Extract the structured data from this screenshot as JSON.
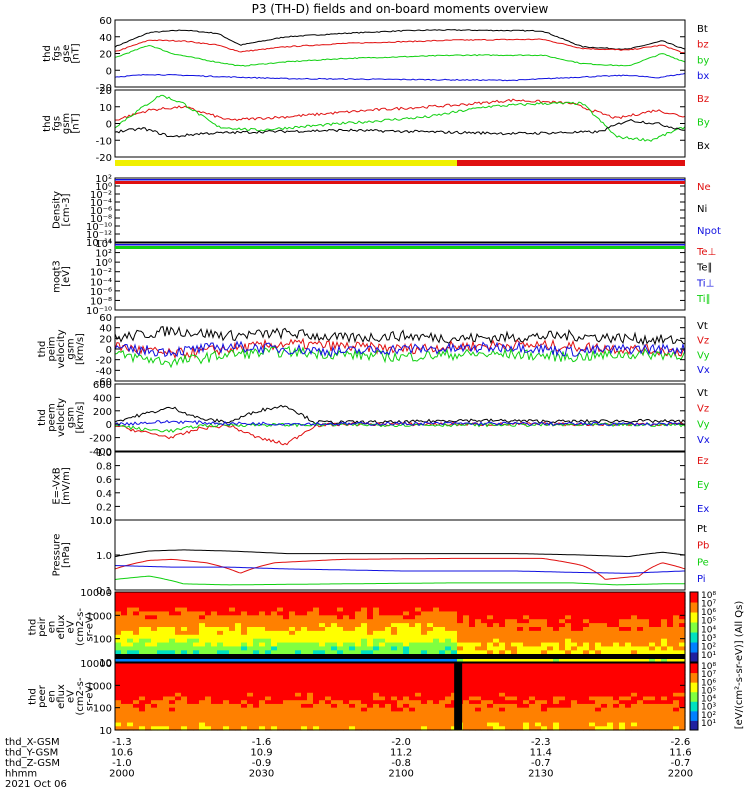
{
  "title": "P3 (TH-D) fields and on-board moments overview",
  "colors": {
    "black": "#000000",
    "red": "#e01010",
    "green": "#10d010",
    "blue": "#1010e0",
    "yellow": "#f0f000"
  },
  "chart_data": [
    {
      "id": "fgs_gse",
      "type": "line",
      "ylabel": [
        "thd",
        "fgs",
        "gse",
        "[nT]"
      ],
      "ylim": [
        -20,
        60
      ],
      "yticks": [
        "60",
        "40",
        "20",
        "0",
        "-20"
      ],
      "series": [
        {
          "name": "Bt",
          "color": "#000000",
          "x": [
            0,
            6,
            12,
            18,
            22,
            30,
            40,
            50,
            56,
            60,
            75,
            82,
            90,
            96,
            100
          ],
          "y": [
            28,
            45,
            48,
            44,
            30,
            40,
            44,
            47,
            48,
            48,
            47,
            28,
            25,
            35,
            25
          ]
        },
        {
          "name": "bz",
          "color": "#e01010",
          "x": [
            0,
            6,
            12,
            18,
            22,
            30,
            40,
            50,
            60,
            75,
            82,
            90,
            96,
            100
          ],
          "y": [
            22,
            36,
            35,
            30,
            22,
            28,
            32,
            34,
            36,
            37,
            26,
            24,
            30,
            20
          ]
        },
        {
          "name": "by",
          "color": "#10d010",
          "x": [
            0,
            6,
            10,
            16,
            22,
            30,
            40,
            50,
            60,
            75,
            82,
            90,
            96,
            100
          ],
          "y": [
            15,
            30,
            20,
            12,
            5,
            10,
            14,
            16,
            18,
            18,
            8,
            5,
            20,
            10
          ]
        },
        {
          "name": "bx",
          "color": "#1010e0",
          "x": [
            0,
            6,
            12,
            20,
            30,
            50,
            70,
            82,
            90,
            95,
            100
          ],
          "y": [
            -8,
            -5,
            -6,
            -8,
            -10,
            -11,
            -12,
            -8,
            -6,
            -9,
            -4
          ]
        }
      ]
    },
    {
      "id": "fgs_gsm",
      "type": "line",
      "ylabel": [
        "thd",
        "fgs",
        "gsm",
        "[nT]"
      ],
      "ylim": [
        -20,
        20
      ],
      "yticks": [
        "20",
        "10",
        "0",
        "-10",
        "-20"
      ],
      "series": [
        {
          "name": "Bz",
          "color": "#e01010",
          "x": [
            0,
            6,
            12,
            20,
            30,
            45,
            60,
            70,
            80,
            88,
            95,
            100
          ],
          "y": [
            2,
            8,
            10,
            2,
            4,
            8,
            11,
            14,
            12,
            3,
            8,
            4
          ]
        },
        {
          "name": "By",
          "color": "#10d010",
          "x": [
            0,
            5,
            8,
            12,
            18,
            25,
            40,
            55,
            65,
            75,
            82,
            88,
            94,
            100
          ],
          "y": [
            -2,
            10,
            17,
            12,
            -2,
            -4,
            0,
            4,
            10,
            12,
            12,
            -8,
            -10,
            -2
          ]
        },
        {
          "name": "Bx",
          "color": "#000000",
          "x": [
            0,
            5,
            10,
            15,
            25,
            40,
            55,
            70,
            85,
            90,
            95,
            100
          ],
          "y": [
            -5,
            -3,
            -8,
            -6,
            -5,
            -4,
            -5,
            -6,
            -5,
            2,
            0,
            -4
          ]
        }
      ]
    },
    {
      "id": "density",
      "type": "line",
      "ylabel": [
        "Density",
        "[cm-3]"
      ],
      "yticks": [
        "10²",
        "10⁰",
        "10⁻²",
        "10⁻⁴",
        "10⁻⁶",
        "10⁻⁸",
        "10⁻¹⁰",
        "10⁻¹²",
        "10⁻¹⁴"
      ],
      "legend": [
        {
          "name": "Ne",
          "color": "#e01010"
        },
        {
          "name": "Ni",
          "color": "#000000"
        },
        {
          "name": "Npot",
          "color": "#1010e0"
        }
      ]
    },
    {
      "id": "temperature",
      "type": "line",
      "ylabel": [
        "moqt3",
        "[eV]"
      ],
      "yticks": [
        "10⁴",
        "10²",
        "10⁰",
        "10⁻²",
        "10⁻⁴",
        "10⁻⁶",
        "10⁻⁸",
        "10⁻¹⁰"
      ],
      "legend": [
        {
          "name": "Te⊥",
          "color": "#e01010"
        },
        {
          "name": "Te∥",
          "color": "#000000"
        },
        {
          "name": "Ti⊥",
          "color": "#1010e0"
        },
        {
          "name": "Ti∥",
          "color": "#10d010"
        }
      ]
    },
    {
      "id": "peim_velocity",
      "type": "line",
      "ylabel": [
        "thd",
        "peim",
        "velocity",
        "gsm",
        "[km/s]"
      ],
      "ylim": [
        -60,
        60
      ],
      "yticks": [
        "60",
        "40",
        "20",
        "0",
        "-20",
        "-40",
        "-60"
      ],
      "series": [
        {
          "name": "Vt",
          "color": "#000000",
          "x": [
            0,
            10,
            20,
            30,
            40,
            50,
            60,
            70,
            80,
            90,
            100
          ],
          "y": [
            20,
            35,
            25,
            30,
            20,
            25,
            20,
            22,
            25,
            20,
            15
          ]
        },
        {
          "name": "Vz",
          "color": "#e01010",
          "x": [
            0,
            10,
            20,
            30,
            40,
            50,
            60,
            70,
            80,
            90,
            100
          ],
          "y": [
            5,
            -10,
            0,
            10,
            5,
            0,
            5,
            8,
            5,
            0,
            -5
          ]
        },
        {
          "name": "Vy",
          "color": "#10d010",
          "x": [
            0,
            10,
            20,
            30,
            40,
            50,
            60,
            70,
            80,
            90,
            100
          ],
          "y": [
            -10,
            -25,
            -10,
            -5,
            -10,
            -15,
            -10,
            -10,
            -15,
            -10,
            -10
          ]
        },
        {
          "name": "Vx",
          "color": "#1010e0",
          "x": [
            0,
            10,
            20,
            30,
            40,
            50,
            60,
            70,
            80,
            90,
            100
          ],
          "y": [
            0,
            -5,
            5,
            0,
            -5,
            0,
            0,
            5,
            -5,
            0,
            0
          ]
        }
      ]
    },
    {
      "id": "peem_velocity",
      "type": "line",
      "ylabel": [
        "thd",
        "peem",
        "velocity",
        "gsm",
        "[km/s]"
      ],
      "ylim": [
        -400,
        600
      ],
      "yticks": [
        "600",
        "400",
        "200",
        "0",
        "-200",
        "-400"
      ],
      "series": [
        {
          "name": "Vt",
          "color": "#000000",
          "x": [
            0,
            5,
            10,
            15,
            20,
            25,
            30,
            35,
            40,
            50,
            60,
            70,
            80,
            90,
            100
          ],
          "y": [
            40,
            150,
            250,
            80,
            30,
            200,
            280,
            30,
            30,
            30,
            60,
            50,
            40,
            50,
            40
          ]
        },
        {
          "name": "Vz",
          "color": "#e01010",
          "x": [
            0,
            5,
            10,
            15,
            20,
            25,
            30,
            35,
            40,
            60,
            80,
            100
          ],
          "y": [
            -20,
            -120,
            -200,
            -60,
            -20,
            -200,
            -300,
            -20,
            0,
            0,
            0,
            0
          ]
        },
        {
          "name": "Vy",
          "color": "#10d010",
          "x": [
            0,
            5,
            10,
            15,
            20,
            40,
            60,
            80,
            100
          ],
          "y": [
            -10,
            -80,
            -100,
            -20,
            -10,
            -10,
            -10,
            -10,
            -10
          ]
        },
        {
          "name": "Vx",
          "color": "#1010e0",
          "x": [
            0,
            10,
            20,
            40,
            60,
            80,
            100
          ],
          "y": [
            0,
            40,
            10,
            5,
            10,
            5,
            0
          ]
        }
      ]
    },
    {
      "id": "efield",
      "type": "line",
      "ylabel": [
        "E=-VxB",
        "[mV/m]"
      ],
      "ylim": [
        0,
        1
      ],
      "yticks": [
        "1.0",
        "0.8",
        "0.6",
        "0.4",
        "0.2",
        "0.0"
      ],
      "legend": [
        {
          "name": "Ez",
          "color": "#e01010"
        },
        {
          "name": "Ey",
          "color": "#10d010"
        },
        {
          "name": "Ex",
          "color": "#1010e0"
        }
      ]
    },
    {
      "id": "pressure",
      "type": "line",
      "ylabel": [
        "Pressure",
        "[nPa]"
      ],
      "yscale": "log",
      "ylim": [
        0.1,
        10
      ],
      "yticks": [
        "10.0",
        "1.0",
        "0.1"
      ],
      "series": [
        {
          "name": "Pt",
          "color": "#000000",
          "x": [
            0,
            6,
            12,
            20,
            30,
            50,
            70,
            82,
            90,
            96,
            100
          ],
          "y": [
            0.9,
            1.3,
            1.4,
            1.3,
            1.1,
            1.1,
            1.1,
            1.0,
            0.9,
            1.2,
            1.0
          ]
        },
        {
          "name": "Pb",
          "color": "#e01010",
          "x": [
            0,
            6,
            10,
            16,
            22,
            28,
            40,
            60,
            75,
            82,
            86,
            92,
            96,
            100
          ],
          "y": [
            0.4,
            0.7,
            0.75,
            0.6,
            0.3,
            0.6,
            0.75,
            0.8,
            0.8,
            0.5,
            0.2,
            0.25,
            0.6,
            0.4
          ]
        },
        {
          "name": "Pe",
          "color": "#10d010",
          "x": [
            0,
            6,
            12,
            20,
            40,
            60,
            80,
            88,
            96,
            100
          ],
          "y": [
            0.2,
            0.25,
            0.15,
            0.14,
            0.15,
            0.16,
            0.16,
            0.14,
            0.15,
            0.15
          ]
        },
        {
          "name": "Pi",
          "color": "#1010e0",
          "x": [
            0,
            10,
            20,
            30,
            50,
            70,
            80,
            90,
            100
          ],
          "y": [
            0.5,
            0.45,
            0.45,
            0.4,
            0.35,
            0.35,
            0.32,
            0.3,
            0.35
          ]
        }
      ]
    },
    {
      "id": "peir_spec",
      "type": "heatmap",
      "ylabel": [
        "thd",
        "peir",
        "en",
        "eflux",
        "eV",
        "(cm2-s-",
        "sr-eV)"
      ],
      "yticks": [
        "10000",
        "1000",
        "100",
        "10"
      ]
    },
    {
      "id": "peer_spec",
      "type": "heatmap",
      "ylabel": [
        "thd",
        "peer",
        "en",
        "eflux",
        "eV",
        "(cm2-s-",
        "sr-eV)"
      ],
      "yticks": [
        "10000",
        "1000",
        "100",
        "10"
      ]
    }
  ],
  "colorbar": {
    "ticks_top": [
      "10⁸",
      "10⁷",
      "10⁶",
      "10⁵",
      "10⁴",
      "10³",
      "10²",
      "10¹"
    ],
    "ticks_bottom": [
      "10⁸",
      "10⁷",
      "10⁶",
      "10⁵",
      "10⁴",
      "10³",
      "10²",
      "10¹"
    ],
    "label": "[eV/(cm²-s-sr-eV)] (All Qs)"
  },
  "xaxis": {
    "rows": [
      {
        "label": "thd_X-GSM",
        "values": [
          "-1.3",
          "-1.6",
          "-2.0",
          "-2.3",
          "-2.6"
        ]
      },
      {
        "label": "thd_Y-GSM",
        "values": [
          "10.6",
          "10.9",
          "11.2",
          "11.4",
          "11.6"
        ]
      },
      {
        "label": "thd_Z-GSM",
        "values": [
          "-1.0",
          "-0.9",
          "-0.8",
          "-0.7",
          "-0.7"
        ]
      },
      {
        "label": "hhmm",
        "values": [
          "2000",
          "2030",
          "2100",
          "2130",
          "2200"
        ]
      }
    ],
    "date": "2021 Oct 06"
  }
}
